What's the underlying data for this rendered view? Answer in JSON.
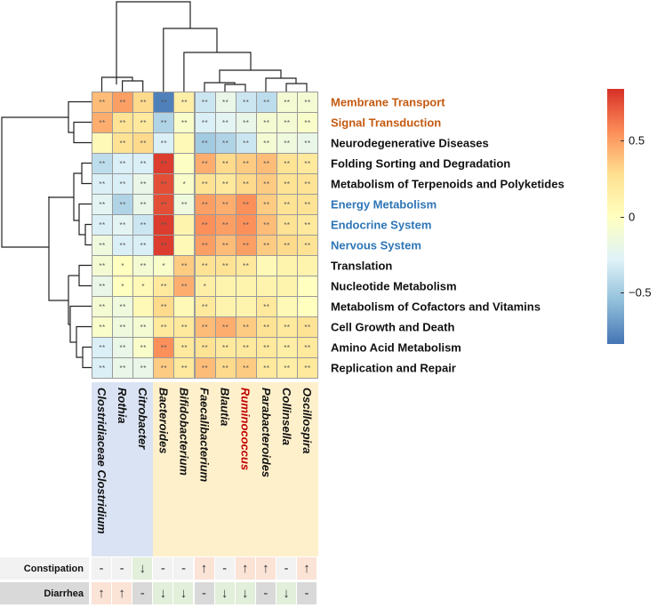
{
  "chart_data": {
    "type": "heatmap",
    "rows": [
      "Membrane Transport",
      "Signal Transduction",
      "Neurodegenerative Diseases",
      "Folding Sorting and Degradation",
      "Metabolism of Terpenoids and Polyketides",
      "Energy Metabolism",
      "Endocrine System",
      "Nervous System",
      "Translation",
      "Nucleotide Metabolism",
      "Metabolism of Cofactors and Vitamins",
      "Cell Growth and Death",
      "Amino Acid Metabolism",
      "Replication and Repair"
    ],
    "row_label_colors": [
      "#c55a11",
      "#c55a11",
      "#111111",
      "#111111",
      "#111111",
      "#2e75b6",
      "#2e75b6",
      "#2e75b6",
      "#111111",
      "#111111",
      "#111111",
      "#111111",
      "#111111",
      "#111111"
    ],
    "columns": [
      "Clostridiaceae Clostridium",
      "Rothia",
      "Citrobacter",
      "Bacteroides",
      "Bifidobacterium",
      "Faecalibacterium",
      "Blautia",
      "Ruminococcus",
      "Parabacteroides",
      "Collinsella",
      "Oscillospira"
    ],
    "column_label_colors": [
      "#111111",
      "#111111",
      "#111111",
      "#111111",
      "#111111",
      "#111111",
      "#111111",
      "#c00000",
      "#111111",
      "#111111",
      "#111111"
    ],
    "column_groups": [
      "blue",
      "blue",
      "blue",
      "orange",
      "orange",
      "orange",
      "orange",
      "orange",
      "orange",
      "orange",
      "orange"
    ],
    "values": [
      [
        0.4,
        0.5,
        0.3,
        -0.8,
        0.15,
        -0.35,
        -0.2,
        -0.35,
        -0.4,
        -0.1,
        -0.1
      ],
      [
        0.45,
        0.25,
        0.2,
        -0.45,
        -0.05,
        -0.3,
        -0.25,
        -0.2,
        -0.1,
        -0.1,
        -0.05
      ],
      [
        0.05,
        0.25,
        0.3,
        -0.3,
        0.05,
        -0.5,
        -0.45,
        -0.35,
        -0.1,
        -0.15,
        -0.2
      ],
      [
        -0.4,
        -0.3,
        -0.3,
        0.8,
        -0.02,
        0.45,
        0.3,
        0.35,
        0.4,
        0.25,
        0.2
      ],
      [
        -0.3,
        -0.3,
        -0.2,
        0.75,
        -0.05,
        0.25,
        0.2,
        0.3,
        0.35,
        0.25,
        0.25
      ],
      [
        -0.25,
        -0.45,
        -0.2,
        0.75,
        -0.15,
        0.5,
        0.45,
        0.55,
        0.35,
        0.25,
        0.25
      ],
      [
        -0.3,
        -0.25,
        -0.35,
        0.8,
        0.1,
        0.55,
        0.5,
        0.55,
        0.4,
        0.25,
        0.2
      ],
      [
        -0.15,
        -0.3,
        -0.3,
        0.8,
        0.05,
        0.5,
        0.4,
        0.5,
        0.35,
        0.3,
        0.25
      ],
      [
        -0.1,
        0.0,
        -0.1,
        -0.05,
        0.35,
        0.25,
        0.25,
        0.2,
        0.05,
        0.1,
        0.1
      ],
      [
        -0.2,
        0.0,
        0.05,
        0.2,
        0.45,
        0.15,
        0.1,
        0.1,
        0.1,
        0.1,
        0.0
      ],
      [
        -0.1,
        -0.15,
        0.05,
        0.3,
        0.05,
        0.2,
        0.1,
        0.1,
        0.2,
        0.05,
        0.0
      ],
      [
        -0.05,
        -0.15,
        -0.1,
        0.2,
        0.2,
        0.4,
        0.45,
        0.35,
        0.25,
        0.2,
        0.25
      ],
      [
        -0.3,
        -0.2,
        -0.05,
        0.55,
        0.2,
        0.25,
        0.2,
        0.2,
        0.2,
        0.15,
        0.2
      ],
      [
        -0.3,
        -0.2,
        -0.2,
        0.35,
        0.2,
        0.4,
        0.3,
        0.35,
        0.2,
        0.15,
        0.2
      ]
    ],
    "significance": [
      [
        "**",
        "**",
        "**",
        "**",
        "**",
        "**",
        "**",
        "**",
        "**",
        "**",
        "**"
      ],
      [
        "**",
        "**",
        "**",
        "**",
        "**",
        "**",
        "**",
        "**",
        "**",
        "**",
        "**"
      ],
      [
        "",
        "**",
        "**",
        "**",
        "",
        "**",
        "**",
        "**",
        "**",
        "**",
        "**"
      ],
      [
        "**",
        "**",
        "**",
        "**",
        "",
        "**",
        "**",
        "**",
        "**",
        "**",
        "**"
      ],
      [
        "**",
        "**",
        "**",
        "**",
        "*",
        "**",
        "**",
        "**",
        "**",
        "**",
        "**"
      ],
      [
        "**",
        "**",
        "**",
        "**",
        "**",
        "**",
        "**",
        "**",
        "**",
        "**",
        "**"
      ],
      [
        "**",
        "**",
        "**",
        "**",
        "",
        "**",
        "**",
        "**",
        "**",
        "**",
        "**"
      ],
      [
        "**",
        "**",
        "**",
        "**",
        "",
        "**",
        "**",
        "**",
        "**",
        "**",
        "**"
      ],
      [
        "**",
        "*",
        "**",
        "*",
        "**",
        "**",
        "**",
        "**",
        "",
        "",
        ""
      ],
      [
        "**",
        "*",
        "*",
        "**",
        "**",
        "*",
        "",
        "",
        "",
        "",
        ""
      ],
      [
        "**",
        "**",
        "",
        "**",
        "",
        "**",
        "",
        "",
        "**",
        "",
        ""
      ],
      [
        "**",
        "**",
        "**",
        "**",
        "**",
        "**",
        "**",
        "**",
        "**",
        "**",
        "**"
      ],
      [
        "**",
        "**",
        "**",
        "**",
        "**",
        "**",
        "**",
        "**",
        "**",
        "**",
        "**"
      ],
      [
        "**",
        "**",
        "**",
        "**",
        "**",
        "**",
        "**",
        "**",
        "**",
        "**",
        "**"
      ]
    ],
    "colorbar": {
      "range": [
        -0.84,
        0.84
      ],
      "ticks": [
        {
          "value": 0.5,
          "label": "0.5"
        },
        {
          "value": 0,
          "label": "0"
        },
        {
          "value": -0.5,
          "label": "−0.5"
        }
      ],
      "colors": [
        "#4575B4",
        "#91BFDB",
        "#E0F3F8",
        "#FFFFBF",
        "#FEE090",
        "#FC8D59",
        "#D73027"
      ]
    },
    "annotation_table": [
      {
        "label": "Constipation",
        "values": [
          "-",
          "-",
          "↓",
          "-",
          "-",
          "↑",
          "-",
          "↑",
          "↑",
          "-",
          "↑"
        ]
      },
      {
        "label": "Diarrhea",
        "values": [
          "↑",
          "↑",
          "-",
          "↓",
          "↓",
          "-",
          "↓",
          "↓",
          "-",
          "↓",
          "-"
        ]
      }
    ]
  }
}
